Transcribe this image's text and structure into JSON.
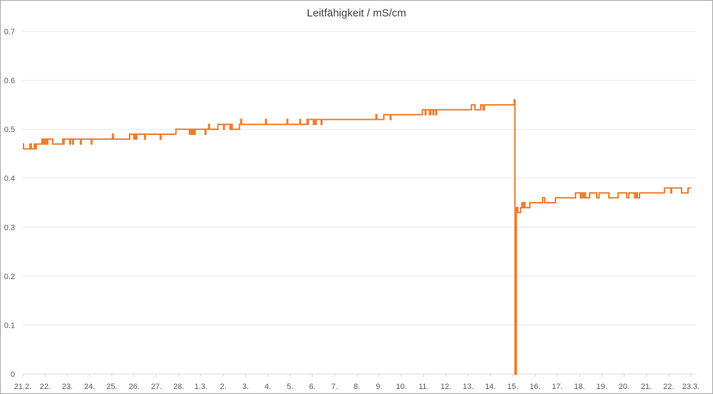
{
  "chart_data": {
    "type": "line",
    "title": "Leitfähigkeit / mS/cm",
    "xlabel": "",
    "ylabel": "",
    "ylim": [
      0,
      0.7
    ],
    "yticks": [
      "0",
      "0.1",
      "0.2",
      "0.3",
      "0.4",
      "0.5",
      "0.6",
      "0.7"
    ],
    "xticks": [
      "21.2.",
      "22.",
      "23.",
      "24.",
      "25.",
      "26.",
      "27.",
      "28.",
      "1.3.",
      "2.",
      "3.",
      "4.",
      "5.",
      "6.",
      "7.",
      "8.",
      "9.",
      "10.",
      "11.",
      "12.",
      "13.",
      "14.",
      "15.",
      "16.",
      "17.",
      "18.",
      "19.",
      "20.",
      "21.",
      "22.",
      "23.3."
    ],
    "xlim": [
      "21.2. 00:00",
      "23.3. 00:00"
    ],
    "grid": "horizontal",
    "line_style": "step",
    "series": [
      {
        "color": "#ED7D31",
        "points": [
          [
            "21.2. 00:00",
            0.47
          ],
          [
            "21.2. 00:45",
            0.46
          ],
          [
            "21.2. 07:40",
            0.47
          ],
          [
            "21.2. 09:10",
            0.46
          ],
          [
            "21.2. 12:20",
            0.47
          ],
          [
            "21.2. 13:50",
            0.46
          ],
          [
            "21.2. 14:35",
            0.47
          ],
          [
            "21.2. 20:45",
            0.48
          ],
          [
            "21.2. 21:30",
            0.47
          ],
          [
            "21.2. 22:15",
            0.48
          ],
          [
            "21.2. 23:50",
            0.47
          ],
          [
            "22.2. 00:35",
            0.48
          ],
          [
            "22.2. 02:05",
            0.47
          ],
          [
            "22.2. 02:55",
            0.48
          ],
          [
            "22.2. 08:15",
            0.47
          ],
          [
            "22.2. 19:00",
            0.48
          ],
          [
            "22.2. 19:45",
            0.47
          ],
          [
            "22.2. 20:30",
            0.48
          ],
          [
            "23.2. 02:40",
            0.47
          ],
          [
            "23.2. 03:25",
            0.48
          ],
          [
            "23.2. 05:45",
            0.47
          ],
          [
            "23.2. 06:30",
            0.48
          ],
          [
            "23.2. 14:10",
            0.47
          ],
          [
            "23.2. 14:55",
            0.48
          ],
          [
            "24.2. 01:40",
            0.47
          ],
          [
            "24.2. 02:25",
            0.48
          ],
          [
            "25.2. 00:40",
            0.49
          ],
          [
            "25.2. 01:30",
            0.48
          ],
          [
            "25.2. 19:05",
            0.49
          ],
          [
            "25.2. 23:45",
            0.48
          ],
          [
            "26.2. 00:30",
            0.49
          ],
          [
            "26.2. 02:00",
            0.48
          ],
          [
            "26.2. 02:50",
            0.49
          ],
          [
            "26.2. 11:15",
            0.48
          ],
          [
            "26.2. 12:00",
            0.49
          ],
          [
            "27.2. 04:10",
            0.48
          ],
          [
            "27.2. 04:55",
            0.49
          ],
          [
            "27.2. 21:00",
            0.5
          ],
          [
            "28.2. 11:35",
            0.49
          ],
          [
            "28.2. 12:25",
            0.5
          ],
          [
            "28.2. 13:55",
            0.49
          ],
          [
            "28.2. 14:40",
            0.5
          ],
          [
            "28.2. 16:10",
            0.49
          ],
          [
            "28.2. 17:45",
            0.5
          ],
          [
            "1.3. 04:30",
            0.49
          ],
          [
            "1.3. 05:15",
            0.5
          ],
          [
            "1.3. 08:20",
            0.51
          ],
          [
            "1.3. 09:05",
            0.5
          ],
          [
            "1.3. 18:20",
            0.51
          ],
          [
            "2.3. 00:25",
            0.5
          ],
          [
            "2.3. 01:10",
            0.51
          ],
          [
            "2.3. 07:20",
            0.5
          ],
          [
            "2.3. 08:05",
            0.51
          ],
          [
            "2.3. 09:35",
            0.5
          ],
          [
            "2.3. 17:20",
            0.51
          ],
          [
            "2.3. 18:50",
            0.52
          ],
          [
            "2.3. 19:40",
            0.51
          ],
          [
            "3.3. 21:40",
            0.52
          ],
          [
            "3.3. 22:30",
            0.51
          ],
          [
            "4.3. 20:45",
            0.52
          ],
          [
            "4.3. 21:30",
            0.51
          ],
          [
            "5.3. 10:35",
            0.52
          ],
          [
            "5.3. 11:20",
            0.51
          ],
          [
            "5.3. 18:15",
            0.52
          ],
          [
            "5.3. 19:00",
            0.51
          ],
          [
            "5.3. 19:45",
            0.52
          ],
          [
            "6.3. 01:10",
            0.51
          ],
          [
            "6.3. 01:55",
            0.52
          ],
          [
            "6.3. 03:25",
            0.51
          ],
          [
            "6.3. 04:10",
            0.52
          ],
          [
            "6.3. 09:35",
            0.51
          ],
          [
            "6.3. 10:20",
            0.52
          ],
          [
            "8.3. 20:40",
            0.53
          ],
          [
            "8.3. 21:25",
            0.52
          ],
          [
            "9.3. 05:05",
            0.53
          ],
          [
            "9.3. 12:00",
            0.52
          ],
          [
            "9.3. 12:50",
            0.53
          ],
          [
            "10.3. 22:35",
            0.54
          ],
          [
            "11.3. 01:40",
            0.53
          ],
          [
            "11.3. 02:25",
            0.54
          ],
          [
            "11.3. 06:15",
            0.53
          ],
          [
            "11.3. 07:45",
            0.54
          ],
          [
            "11.3. 10:05",
            0.53
          ],
          [
            "11.3. 10:50",
            0.54
          ],
          [
            "11.3. 13:10",
            0.53
          ],
          [
            "11.3. 13:55",
            0.54
          ],
          [
            "13.3. 03:30",
            0.55
          ],
          [
            "13.3. 07:20",
            0.54
          ],
          [
            "13.3. 13:30",
            0.55
          ],
          [
            "13.3. 15:50",
            0.54
          ],
          [
            "13.3. 17:30",
            0.55
          ],
          [
            "15.3. 01:35",
            0.56
          ],
          [
            "15.3. 02:25",
            0
          ],
          [
            "15.3. 03:55",
            0.34
          ],
          [
            "15.3. 05:25",
            0.33
          ],
          [
            "15.3. 08:30",
            0.34
          ],
          [
            "15.3. 10:00",
            0.35
          ],
          [
            "15.3. 10:50",
            0.34
          ],
          [
            "15.3. 12:20",
            0.35
          ],
          [
            "15.3. 13:05",
            0.34
          ],
          [
            "15.3. 18:25",
            0.35
          ],
          [
            "16.3. 08:15",
            0.36
          ],
          [
            "16.3. 10:35",
            0.35
          ],
          [
            "16.3. 22:05",
            0.36
          ],
          [
            "17.3. 19:35",
            0.37
          ],
          [
            "18.3. 01:00",
            0.36
          ],
          [
            "18.3. 01:45",
            0.37
          ],
          [
            "18.3. 03:15",
            0.36
          ],
          [
            "18.3. 04:50",
            0.37
          ],
          [
            "18.3. 06:20",
            0.36
          ],
          [
            "18.3. 10:55",
            0.37
          ],
          [
            "18.3. 18:35",
            0.36
          ],
          [
            "18.3. 20:55",
            0.37
          ],
          [
            "19.3. 07:40",
            0.36
          ],
          [
            "19.3. 17:35",
            0.37
          ],
          [
            "20.3. 02:55",
            0.36
          ],
          [
            "20.3. 05:10",
            0.37
          ],
          [
            "20.3. 11:15",
            0.36
          ],
          [
            "20.3. 12:50",
            0.37
          ],
          [
            "20.3. 14:20",
            0.36
          ],
          [
            "20.3. 16:40",
            0.37
          ],
          [
            "21.3. 19:30",
            0.38
          ],
          [
            "22.3. 02:25",
            0.37
          ],
          [
            "22.3. 03:10",
            0.38
          ],
          [
            "22.3. 13:55",
            0.37
          ],
          [
            "22.3. 20:55",
            0.38
          ],
          [
            "23.3. 00:00",
            0.38
          ]
        ]
      }
    ]
  }
}
